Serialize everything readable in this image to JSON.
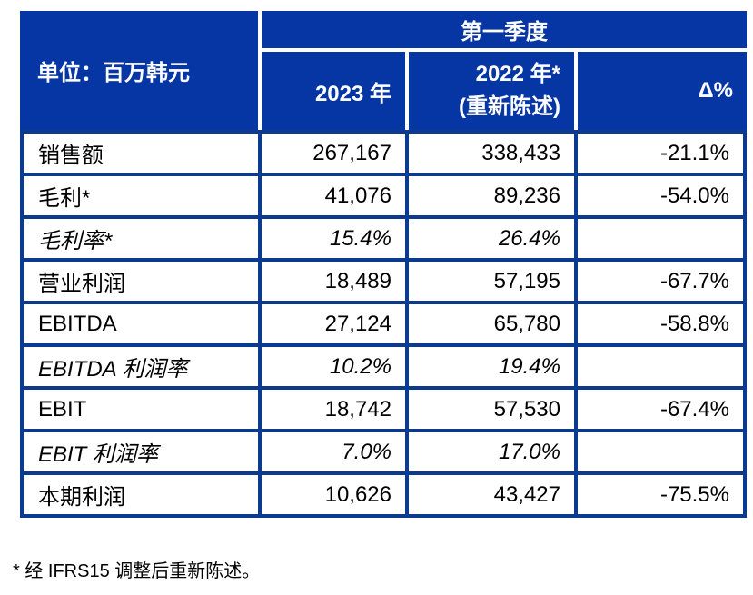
{
  "colors": {
    "header_bg": "#0636A4",
    "grid_line": "#0B3A8F",
    "header_text": "#ffffff",
    "body_text": "#000000",
    "page_bg": "#ffffff"
  },
  "table": {
    "unit_label": "单位：百万韩元",
    "quarter_header": "第一季度",
    "col_2023": "2023 年",
    "col_2022_line1": "2022 年*",
    "col_2022_line2": "(重新陈述)",
    "col_delta": "Δ%",
    "rows": [
      {
        "label": "销售额",
        "y2023": "267,167",
        "y2022": "338,433",
        "delta": "-21.1%"
      },
      {
        "label": "毛利*",
        "y2023": "41,076",
        "y2022": "89,236",
        "delta": "-54.0%"
      },
      {
        "label": "毛利率*",
        "y2023": "15.4%",
        "y2022": "26.4%",
        "delta": ""
      },
      {
        "label": "营业利润",
        "y2023": "18,489",
        "y2022": "57,195",
        "delta": "-67.7%"
      },
      {
        "label": "EBITDA",
        "y2023": "27,124",
        "y2022": "65,780",
        "delta": "-58.8%"
      },
      {
        "label": "EBITDA 利润率",
        "y2023": "10.2%",
        "y2022": "19.4%",
        "delta": ""
      },
      {
        "label": "EBIT",
        "y2023": "18,742",
        "y2022": "57,530",
        "delta": "-67.4%"
      },
      {
        "label": "EBIT 利润率",
        "y2023": "7.0%",
        "y2022": "17.0%",
        "delta": ""
      },
      {
        "label": "本期利润",
        "y2023": "10,626",
        "y2022": "43,427",
        "delta": "-75.5%"
      }
    ]
  },
  "footnote": "* 经 IFRS15 调整后重新陈述。"
}
